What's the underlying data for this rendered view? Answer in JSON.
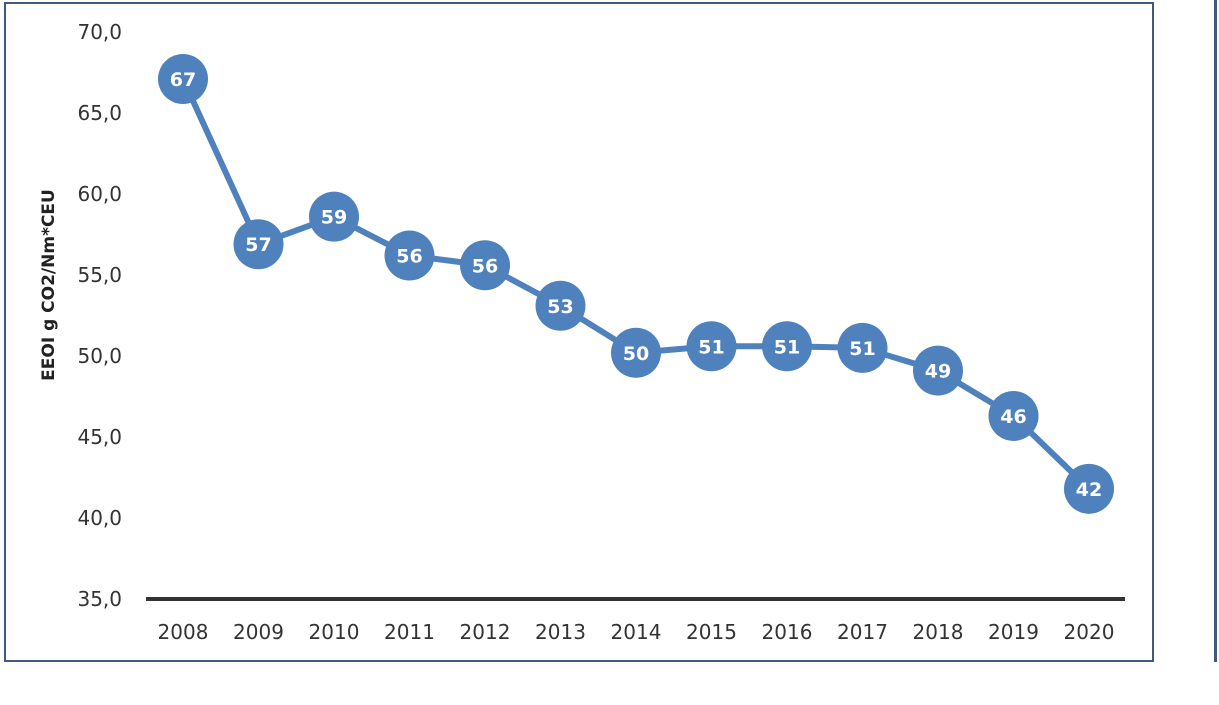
{
  "chart_data": {
    "type": "line",
    "title": "",
    "xlabel": "",
    "ylabel": "EEOI g CO2/Nm*CEU",
    "categories": [
      "2008",
      "2009",
      "2010",
      "2011",
      "2012",
      "2013",
      "2014",
      "2015",
      "2016",
      "2017",
      "2018",
      "2019",
      "2020"
    ],
    "values": [
      67.1,
      56.9,
      58.6,
      56.2,
      55.6,
      53.1,
      50.2,
      50.6,
      50.6,
      50.5,
      49.1,
      46.3,
      41.8
    ],
    "data_labels": [
      "67",
      "57",
      "59",
      "56",
      "56",
      "53",
      "50",
      "51",
      "51",
      "51",
      "49",
      "46",
      "42"
    ],
    "ylim": [
      35,
      70
    ],
    "yticks": [
      "70,0",
      "65,0",
      "60,0",
      "55,0",
      "50,0",
      "45,0",
      "40,0",
      "35,0"
    ],
    "ytick_values": [
      70,
      65,
      60,
      55,
      50,
      45,
      40,
      35
    ],
    "grid": false,
    "legend": "none",
    "colors": {
      "series": "#4f81bd",
      "axis": "#333333",
      "frame": "#3d5a80"
    }
  }
}
